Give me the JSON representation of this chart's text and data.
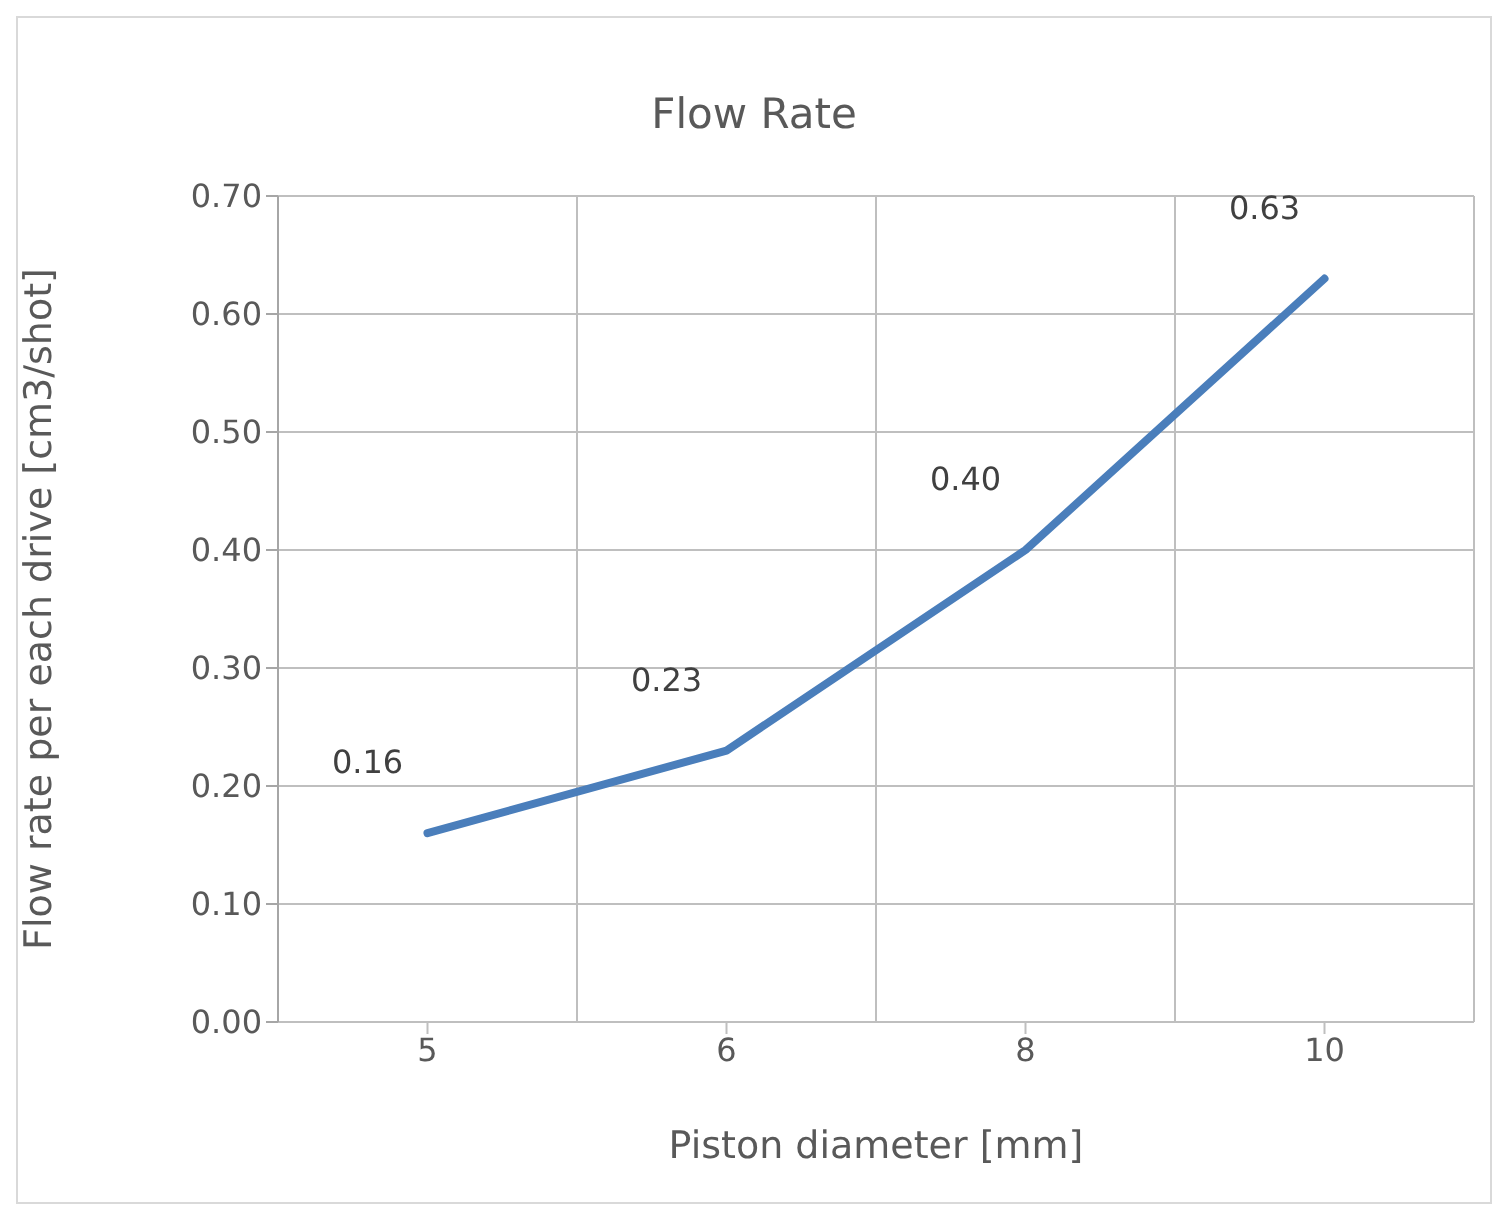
{
  "chart_data": {
    "type": "line",
    "title": "Flow Rate",
    "xlabel": "Piston diameter [mm]",
    "ylabel": "Flow rate per each drive [cm3/shot]",
    "categories": [
      "5",
      "6",
      "8",
      "10"
    ],
    "series": [
      {
        "color": "#4a7ebb",
        "values": [
          0.16,
          0.23,
          0.4,
          0.63
        ],
        "value_labels": [
          "0.16",
          "0.23",
          "0.40",
          "0.63"
        ]
      }
    ],
    "ylim": [
      0,
      0.7
    ],
    "yticks": [
      {
        "value": 0,
        "label": "0.00"
      },
      {
        "value": 0.1,
        "label": "0.10"
      },
      {
        "value": 0.2,
        "label": "0.20"
      },
      {
        "value": 0.3,
        "label": "0.30"
      },
      {
        "value": 0.4,
        "label": "0.40"
      },
      {
        "value": 0.5,
        "label": "0.50"
      },
      {
        "value": 0.6,
        "label": "0.60"
      },
      {
        "value": 0.7,
        "label": "0.70"
      }
    ],
    "grid": true,
    "marker": "none",
    "line_style": "solid"
  }
}
